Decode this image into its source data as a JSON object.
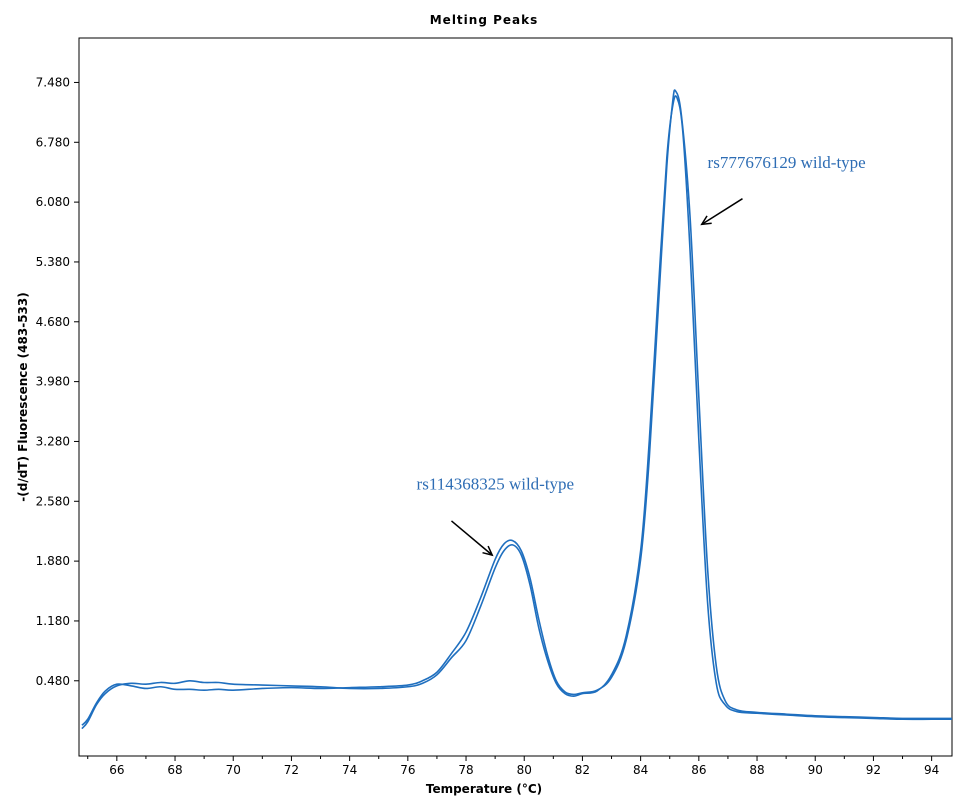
{
  "chart_data": {
    "type": "line",
    "title": "Melting Peaks",
    "xlabel": "Temperature (°C)",
    "ylabel": "-(d/dT) Fluorescence (483-533)",
    "xlim": [
      64.7,
      94.7
    ],
    "ylim": [
      -0.4,
      8.0
    ],
    "x_ticks": [
      66,
      68,
      70,
      72,
      74,
      76,
      78,
      80,
      82,
      84,
      86,
      88,
      90,
      92,
      94
    ],
    "y_ticks": [
      0.48,
      1.18,
      1.88,
      2.58,
      3.28,
      3.98,
      4.68,
      5.38,
      6.08,
      6.78,
      7.48
    ],
    "x_tick_labels": [
      "66",
      "68",
      "70",
      "72",
      "74",
      "76",
      "78",
      "80",
      "82",
      "84",
      "86",
      "88",
      "90",
      "92",
      "94"
    ],
    "y_tick_labels": [
      "0.480",
      "1.180",
      "1.880",
      "2.580",
      "3.280",
      "3.980",
      "4.680",
      "5.380",
      "6.080",
      "6.780",
      "7.480"
    ],
    "grid": false,
    "line_color": "#1f6fbf",
    "series": [
      {
        "points": [
          [
            64.8,
            -0.08
          ],
          [
            65.0,
            0.0
          ],
          [
            65.3,
            0.2
          ],
          [
            65.6,
            0.33
          ],
          [
            66.0,
            0.42
          ],
          [
            66.5,
            0.45
          ],
          [
            67.0,
            0.44
          ],
          [
            67.5,
            0.46
          ],
          [
            68.0,
            0.45
          ],
          [
            68.5,
            0.48
          ],
          [
            69.0,
            0.46
          ],
          [
            69.5,
            0.46
          ],
          [
            70.0,
            0.44
          ],
          [
            71.0,
            0.43
          ],
          [
            72.0,
            0.42
          ],
          [
            73.0,
            0.41
          ],
          [
            74.0,
            0.39
          ],
          [
            75.0,
            0.39
          ],
          [
            76.0,
            0.41
          ],
          [
            76.5,
            0.45
          ],
          [
            77.0,
            0.55
          ],
          [
            77.5,
            0.75
          ],
          [
            78.0,
            0.95
          ],
          [
            78.5,
            1.35
          ],
          [
            79.0,
            1.8
          ],
          [
            79.3,
            2.0
          ],
          [
            79.6,
            2.07
          ],
          [
            79.9,
            1.95
          ],
          [
            80.2,
            1.6
          ],
          [
            80.5,
            1.1
          ],
          [
            80.8,
            0.72
          ],
          [
            81.1,
            0.45
          ],
          [
            81.4,
            0.33
          ],
          [
            81.7,
            0.3
          ],
          [
            82.0,
            0.33
          ],
          [
            82.5,
            0.36
          ],
          [
            83.0,
            0.55
          ],
          [
            83.5,
            1.0
          ],
          [
            84.0,
            2.0
          ],
          [
            84.3,
            3.3
          ],
          [
            84.6,
            5.0
          ],
          [
            84.9,
            6.6
          ],
          [
            85.1,
            7.2
          ],
          [
            85.25,
            7.3
          ],
          [
            85.45,
            6.9
          ],
          [
            85.7,
            5.5
          ],
          [
            86.0,
            3.3
          ],
          [
            86.3,
            1.4
          ],
          [
            86.6,
            0.45
          ],
          [
            86.9,
            0.2
          ],
          [
            87.3,
            0.12
          ],
          [
            88.0,
            0.1
          ],
          [
            89.0,
            0.08
          ],
          [
            90.0,
            0.06
          ],
          [
            91.0,
            0.05
          ],
          [
            92.0,
            0.04
          ],
          [
            93.0,
            0.03
          ],
          [
            94.0,
            0.03
          ],
          [
            94.7,
            0.03
          ]
        ]
      },
      {
        "points": [
          [
            64.8,
            -0.04
          ],
          [
            65.0,
            0.03
          ],
          [
            65.3,
            0.22
          ],
          [
            65.6,
            0.36
          ],
          [
            66.0,
            0.44
          ],
          [
            66.5,
            0.42
          ],
          [
            67.0,
            0.39
          ],
          [
            67.5,
            0.41
          ],
          [
            68.0,
            0.38
          ],
          [
            68.5,
            0.38
          ],
          [
            69.0,
            0.37
          ],
          [
            69.5,
            0.38
          ],
          [
            70.0,
            0.37
          ],
          [
            71.0,
            0.39
          ],
          [
            72.0,
            0.4
          ],
          [
            73.0,
            0.39
          ],
          [
            74.0,
            0.4
          ],
          [
            75.0,
            0.41
          ],
          [
            76.0,
            0.43
          ],
          [
            76.5,
            0.48
          ],
          [
            77.0,
            0.58
          ],
          [
            77.5,
            0.8
          ],
          [
            78.0,
            1.05
          ],
          [
            78.5,
            1.45
          ],
          [
            79.0,
            1.9
          ],
          [
            79.3,
            2.08
          ],
          [
            79.6,
            2.12
          ],
          [
            79.9,
            2.0
          ],
          [
            80.2,
            1.68
          ],
          [
            80.5,
            1.2
          ],
          [
            80.8,
            0.78
          ],
          [
            81.1,
            0.48
          ],
          [
            81.4,
            0.35
          ],
          [
            81.7,
            0.32
          ],
          [
            82.0,
            0.34
          ],
          [
            82.5,
            0.37
          ],
          [
            83.0,
            0.52
          ],
          [
            83.5,
            0.95
          ],
          [
            84.0,
            1.9
          ],
          [
            84.3,
            3.1
          ],
          [
            84.6,
            4.8
          ],
          [
            84.9,
            6.5
          ],
          [
            85.1,
            7.25
          ],
          [
            85.2,
            7.38
          ],
          [
            85.4,
            7.1
          ],
          [
            85.7,
            5.9
          ],
          [
            86.0,
            3.8
          ],
          [
            86.3,
            1.8
          ],
          [
            86.6,
            0.65
          ],
          [
            86.9,
            0.25
          ],
          [
            87.3,
            0.14
          ],
          [
            88.0,
            0.11
          ],
          [
            89.0,
            0.09
          ],
          [
            90.0,
            0.07
          ],
          [
            91.0,
            0.06
          ],
          [
            92.0,
            0.05
          ],
          [
            93.0,
            0.04
          ],
          [
            94.0,
            0.04
          ],
          [
            94.7,
            0.04
          ]
        ]
      }
    ],
    "annotations": [
      {
        "text": "rs114368325 wild-type",
        "text_x": 76.3,
        "text_y": 2.72,
        "arrow_from": [
          77.5,
          2.35
        ],
        "arrow_to": [
          78.9,
          1.95
        ],
        "color": "#2e6db4"
      },
      {
        "text": "rs777676129 wild-type",
        "text_x": 86.3,
        "text_y": 6.48,
        "arrow_from": [
          87.5,
          6.12
        ],
        "arrow_to": [
          86.1,
          5.82
        ],
        "color": "#2e6db4"
      }
    ]
  }
}
